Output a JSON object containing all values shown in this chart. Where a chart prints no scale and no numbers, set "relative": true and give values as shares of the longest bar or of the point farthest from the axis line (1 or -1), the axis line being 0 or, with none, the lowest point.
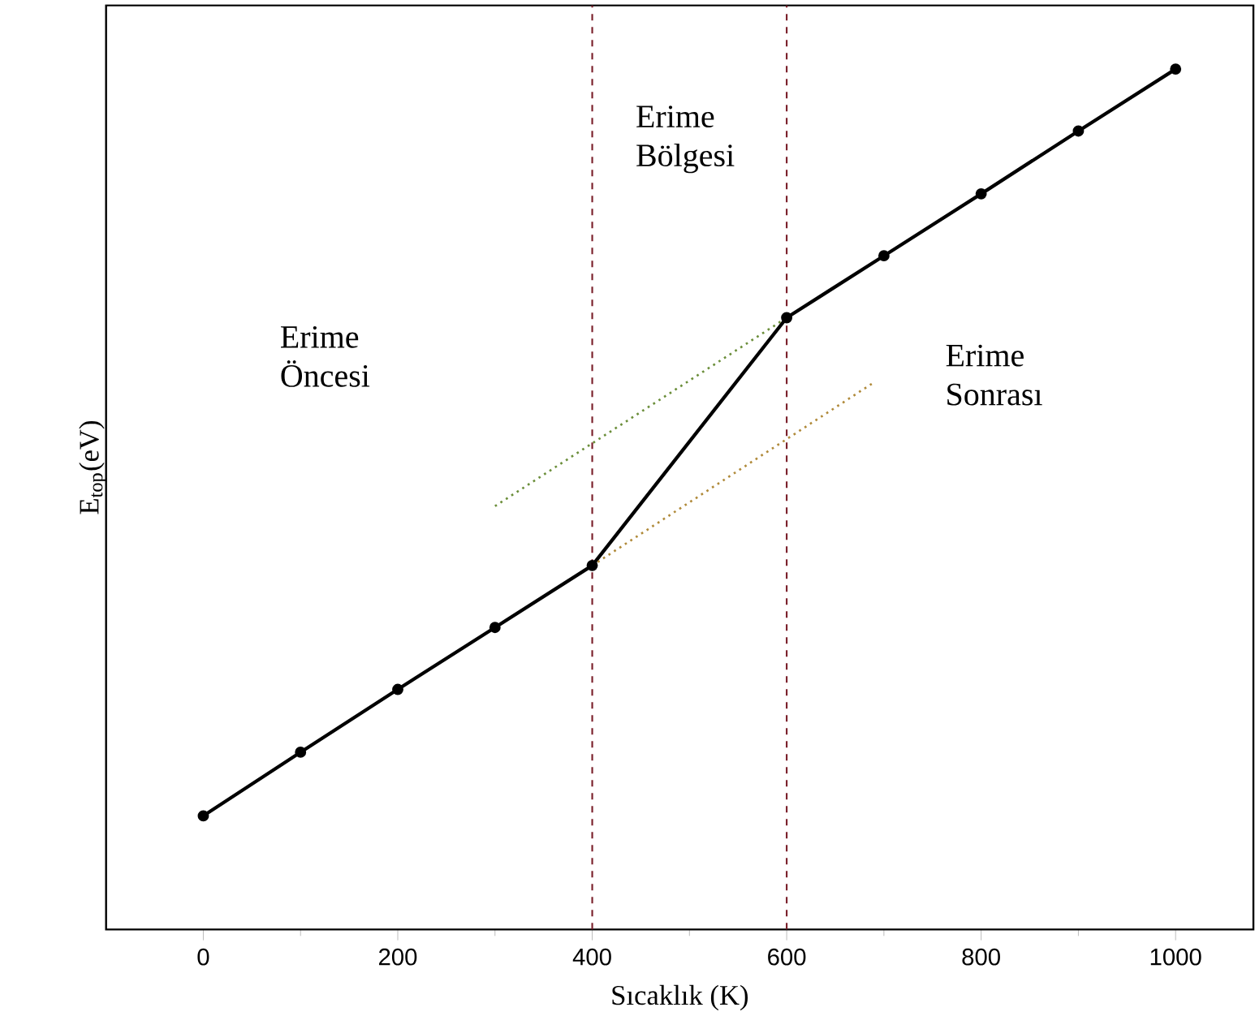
{
  "chart_data": {
    "type": "line",
    "relative": true,
    "xlabel": "Sıcaklık (K)",
    "ylabel": "E$_{top}$(eV)",
    "xlim": [
      -100,
      1080
    ],
    "xticks": [
      0,
      200,
      400,
      600,
      800,
      1000
    ],
    "tick_labels": "x",
    "grid": false,
    "marker": "circle",
    "line_style": "solid",
    "x": [
      0,
      100,
      200,
      300,
      400,
      600,
      700,
      800,
      900,
      1000
    ],
    "series": [
      {
        "color": "#000000",
        "values": [
          0.132,
          0.206,
          0.279,
          0.351,
          0.423,
          0.711,
          0.783,
          0.855,
          0.928,
          1
        ]
      },
      {
        "type": "line",
        "x": [
          300,
          600
        ],
        "values": [
          0.492,
          0.711
        ],
        "color": "#6b8e3a",
        "line_style": "dotted",
        "marker": "none"
      },
      {
        "type": "line",
        "x": [
          400,
          690
        ],
        "values": [
          0.423,
          0.636
        ],
        "color": "#b08a3a",
        "line_style": "dotted",
        "marker": "none"
      }
    ],
    "ref_lines": [
      {
        "axis": "x",
        "value": 400,
        "color": "#7a1f2a",
        "line_style": "dashed"
      },
      {
        "axis": "x",
        "value": 600,
        "color": "#7a1f2a",
        "line_style": "dashed"
      }
    ],
    "annotations": [
      "Erime Öncesi",
      "Erime Bölgesi",
      "Erime Sonrası"
    ]
  }
}
